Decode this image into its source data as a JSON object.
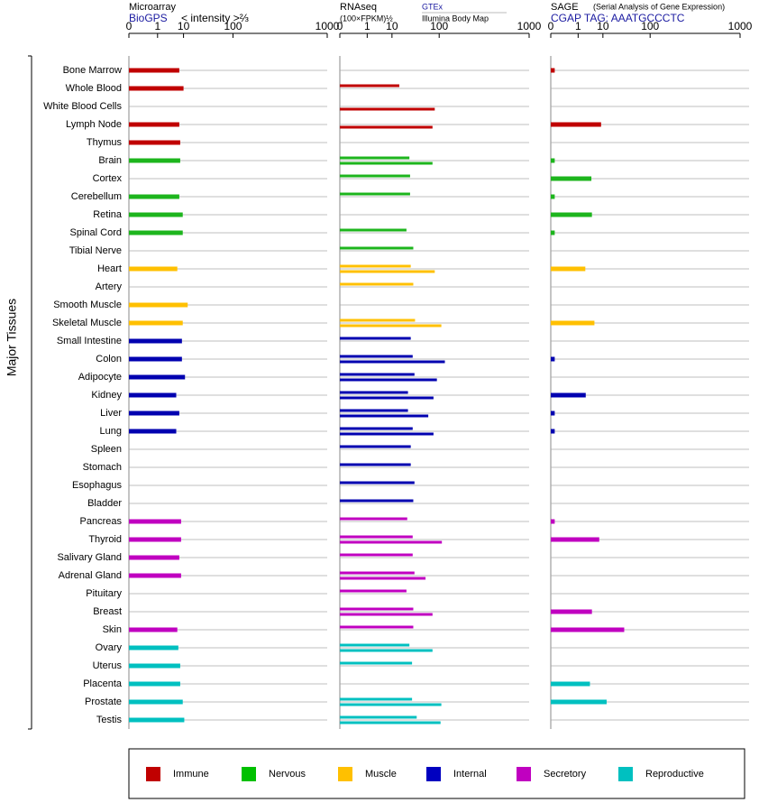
{
  "chart_data": [
    {
      "type": "bar",
      "orientation": "horizontal",
      "title": "Microarray",
      "x_label": "< intensity >⅔",
      "y_label": "Major Tissues",
      "categories": [
        "Bone Marrow",
        "Whole Blood",
        "White Blood Cells",
        "Lymph Node",
        "Thymus",
        "Brain",
        "Cortex",
        "Cerebellum",
        "Retina",
        "Spinal Cord",
        "Tibial Nerve",
        "Heart",
        "Artery",
        "Smooth Muscle",
        "Skeletal Muscle",
        "Small Intestine",
        "Colon",
        "Adipocyte",
        "Kidney",
        "Liver",
        "Lung",
        "Spleen",
        "Stomach",
        "Esophagus",
        "Bladder",
        "Pancreas",
        "Thyroid",
        "Salivary Gland",
        "Adrenal Gland",
        "Pituitary",
        "Breast",
        "Skin",
        "Ovary",
        "Uterus",
        "Placenta",
        "Prostate",
        "Testis"
      ],
      "category_colors": [
        "#c00000",
        "#c00000",
        "#c00000",
        "#c00000",
        "#c00000",
        "#1db51d",
        "#1db51d",
        "#1db51d",
        "#1db51d",
        "#1db51d",
        "#1db51d",
        "#ffc000",
        "#ffc000",
        "#ffc000",
        "#ffc000",
        "#0000b0",
        "#0000b0",
        "#0000b0",
        "#0000b0",
        "#0000b0",
        "#0000b0",
        "#0000b0",
        "#0000b0",
        "#0000b0",
        "#0000b0",
        "#c000c0",
        "#c000c0",
        "#c000c0",
        "#c000c0",
        "#c000c0",
        "#c000c0",
        "#c000c0",
        "#00c0c0",
        "#00c0c0",
        "#00c0c0",
        "#00c0c0",
        "#00c0c0"
      ],
      "series": [
        {
          "name": "BioGPS",
          "values": [
            7.5,
            10,
            null,
            7.5,
            8,
            8,
            null,
            7.5,
            9.5,
            9.5,
            null,
            6.5,
            null,
            13,
            9.5,
            9,
            9,
            11,
            6,
            7.5,
            6,
            null,
            null,
            null,
            null,
            8.5,
            8.5,
            7.5,
            8.5,
            null,
            null,
            6.5,
            7,
            8,
            8,
            9.5,
            10.5
          ]
        }
      ],
      "xlim": [
        0,
        1000
      ],
      "xticks": [
        0,
        1,
        10,
        100,
        1000
      ],
      "x_scale": {
        "type": "power",
        "exponent": 0.28
      },
      "grid": true
    },
    {
      "type": "bar",
      "orientation": "horizontal",
      "title": "RNAseq",
      "x_label": "(100×FPKM)½",
      "series": [
        {
          "name": "GTEx",
          "values": [
            null,
            16,
            null,
            null,
            null,
            28,
            29,
            29,
            null,
            24,
            34,
            30,
            34,
            null,
            37,
            30,
            33,
            36,
            26,
            26,
            33,
            30,
            30,
            36,
            34,
            25,
            33,
            33,
            36,
            24,
            34,
            34,
            28,
            32,
            null,
            32,
            40
          ]
        },
        {
          "name": "Illumina Body Map",
          "values": [
            null,
            null,
            85,
            78,
            null,
            78,
            null,
            null,
            null,
            null,
            null,
            85,
            null,
            null,
            108,
            null,
            122,
            92,
            81,
            66,
            81,
            null,
            null,
            null,
            null,
            null,
            110,
            null,
            59,
            null,
            78,
            null,
            78,
            null,
            null,
            108,
            105
          ]
        }
      ],
      "xlim": [
        0,
        1000
      ],
      "xticks": [
        0,
        1,
        10,
        100,
        1000
      ],
      "x_scale": {
        "type": "power",
        "exponent": 0.28
      },
      "grid": true
    },
    {
      "type": "bar",
      "orientation": "horizontal",
      "title": "SAGE",
      "subtitle": "(Serial Analysis of Gene Expression)",
      "series": [
        {
          "name": "CGAP TAG: AAATGCCCTC",
          "values": [
            0.001,
            null,
            null,
            8.8,
            null,
            0.001,
            4.1,
            0.001,
            4.3,
            0.001,
            null,
            2.3,
            null,
            null,
            5.3,
            null,
            0.001,
            null,
            2.4,
            0.001,
            0.001,
            null,
            null,
            null,
            null,
            0.001,
            7.7,
            null,
            null,
            null,
            4.3,
            34,
            null,
            null,
            3.6,
            12.8,
            null
          ]
        }
      ],
      "xlim": [
        0,
        1000
      ],
      "xticks": [
        0,
        1,
        10,
        100,
        1000
      ],
      "x_scale": {
        "type": "power",
        "exponent": 0.28
      },
      "grid": true
    }
  ],
  "legend": {
    "items": [
      {
        "name": "Immune",
        "color": "#c00000"
      },
      {
        "name": "Nervous",
        "color": "#00c000"
      },
      {
        "name": "Muscle",
        "color": "#ffc000"
      },
      {
        "name": "Internal",
        "color": "#0000c0"
      },
      {
        "name": "Secretory",
        "color": "#c000c0"
      },
      {
        "name": "Reproductive",
        "color": "#00c0c0"
      }
    ]
  }
}
